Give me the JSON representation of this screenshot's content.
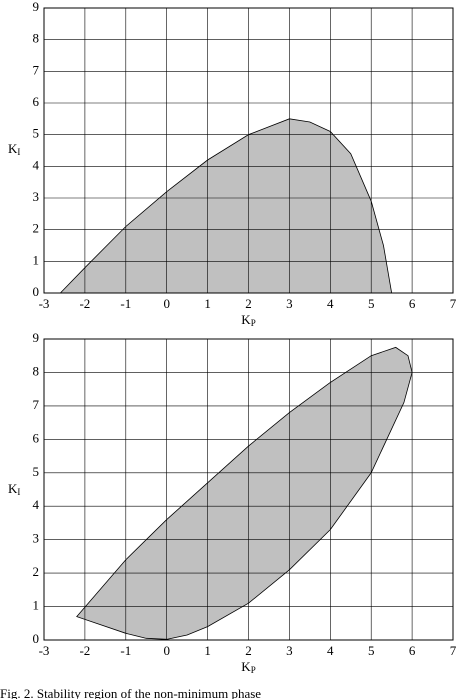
{
  "chart_data": [
    {
      "type": "area",
      "xlabel": {
        "base": "K",
        "sub": "P"
      },
      "ylabel": {
        "base": "K",
        "sub": "I"
      },
      "x": [
        -2.6,
        -2,
        -1,
        0,
        1,
        2,
        3,
        3.5,
        4,
        4.5,
        5,
        5.3,
        5.5
      ],
      "values": [
        0,
        0.8,
        2.1,
        3.2,
        4.2,
        5.0,
        5.5,
        5.4,
        5.1,
        4.4,
        2.9,
        1.5,
        0
      ],
      "color": "#c0c0c0",
      "xlim": [
        -3,
        7
      ],
      "ylim": [
        0,
        9
      ],
      "xticks": [
        -3,
        -2,
        -1,
        0,
        1,
        2,
        3,
        4,
        5,
        6,
        7
      ],
      "yticks": [
        0,
        1,
        2,
        3,
        4,
        5,
        6,
        7,
        8,
        9
      ],
      "grid": true
    },
    {
      "type": "area",
      "xlabel": {
        "base": "K",
        "sub": "P"
      },
      "ylabel": {
        "base": "K",
        "sub": "I"
      },
      "x": [
        -2.2,
        -1,
        0,
        1,
        2,
        3,
        4,
        5,
        5.6,
        5.9,
        6.0,
        5.8,
        5,
        4,
        3,
        2,
        1,
        0.5,
        0,
        -0.5,
        -1
      ],
      "values": [
        0.7,
        2.4,
        3.6,
        4.7,
        5.8,
        6.8,
        7.7,
        8.5,
        8.75,
        8.5,
        8.0,
        7.1,
        5.0,
        3.3,
        2.1,
        1.1,
        0.4,
        0.15,
        0.02,
        0.05,
        0.2
      ],
      "color": "#c0c0c0",
      "xlim": [
        -3,
        7
      ],
      "ylim": [
        0,
        9
      ],
      "xticks": [
        -3,
        -2,
        -1,
        0,
        1,
        2,
        3,
        4,
        5,
        6,
        7
      ],
      "yticks": [
        0,
        1,
        2,
        3,
        4,
        5,
        6,
        7,
        8,
        9
      ],
      "grid": true
    }
  ],
  "caption": "Fig. 2. Stability region of the non-minimum phase"
}
